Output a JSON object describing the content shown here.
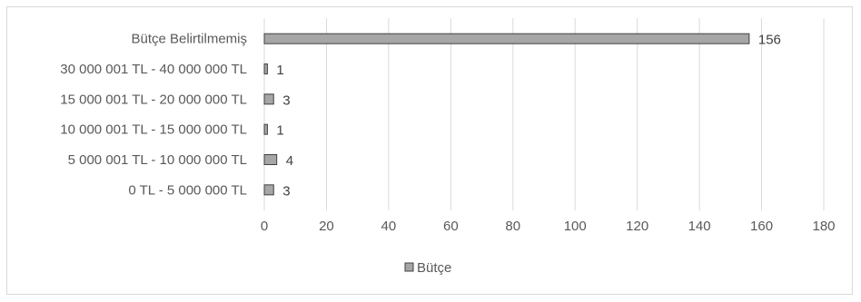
{
  "chart_data": {
    "type": "bar",
    "orientation": "horizontal",
    "categories": [
      "0 TL -  5 000 000 TL",
      "5 000 001 TL - 10 000 000 TL",
      "10 000 001 TL - 15 000 000 TL",
      "15 000 001 TL - 20 000 000 TL",
      "30 000 001 TL - 40 000 000 TL",
      "Bütçe Belirtilmemiş"
    ],
    "series": [
      {
        "name": "Bütçe",
        "values": [
          3,
          4,
          1,
          3,
          1,
          156
        ]
      }
    ],
    "xlim": [
      0,
      180
    ],
    "xticks": [
      0,
      20,
      40,
      60,
      80,
      100,
      120,
      140,
      160,
      180
    ],
    "grid": "vertical",
    "legend": "bottom",
    "colors": {
      "bar_fill": "#a6a6a6",
      "bar_stroke": "#404040",
      "grid": "#d9d9d9",
      "text": "#595959"
    }
  }
}
